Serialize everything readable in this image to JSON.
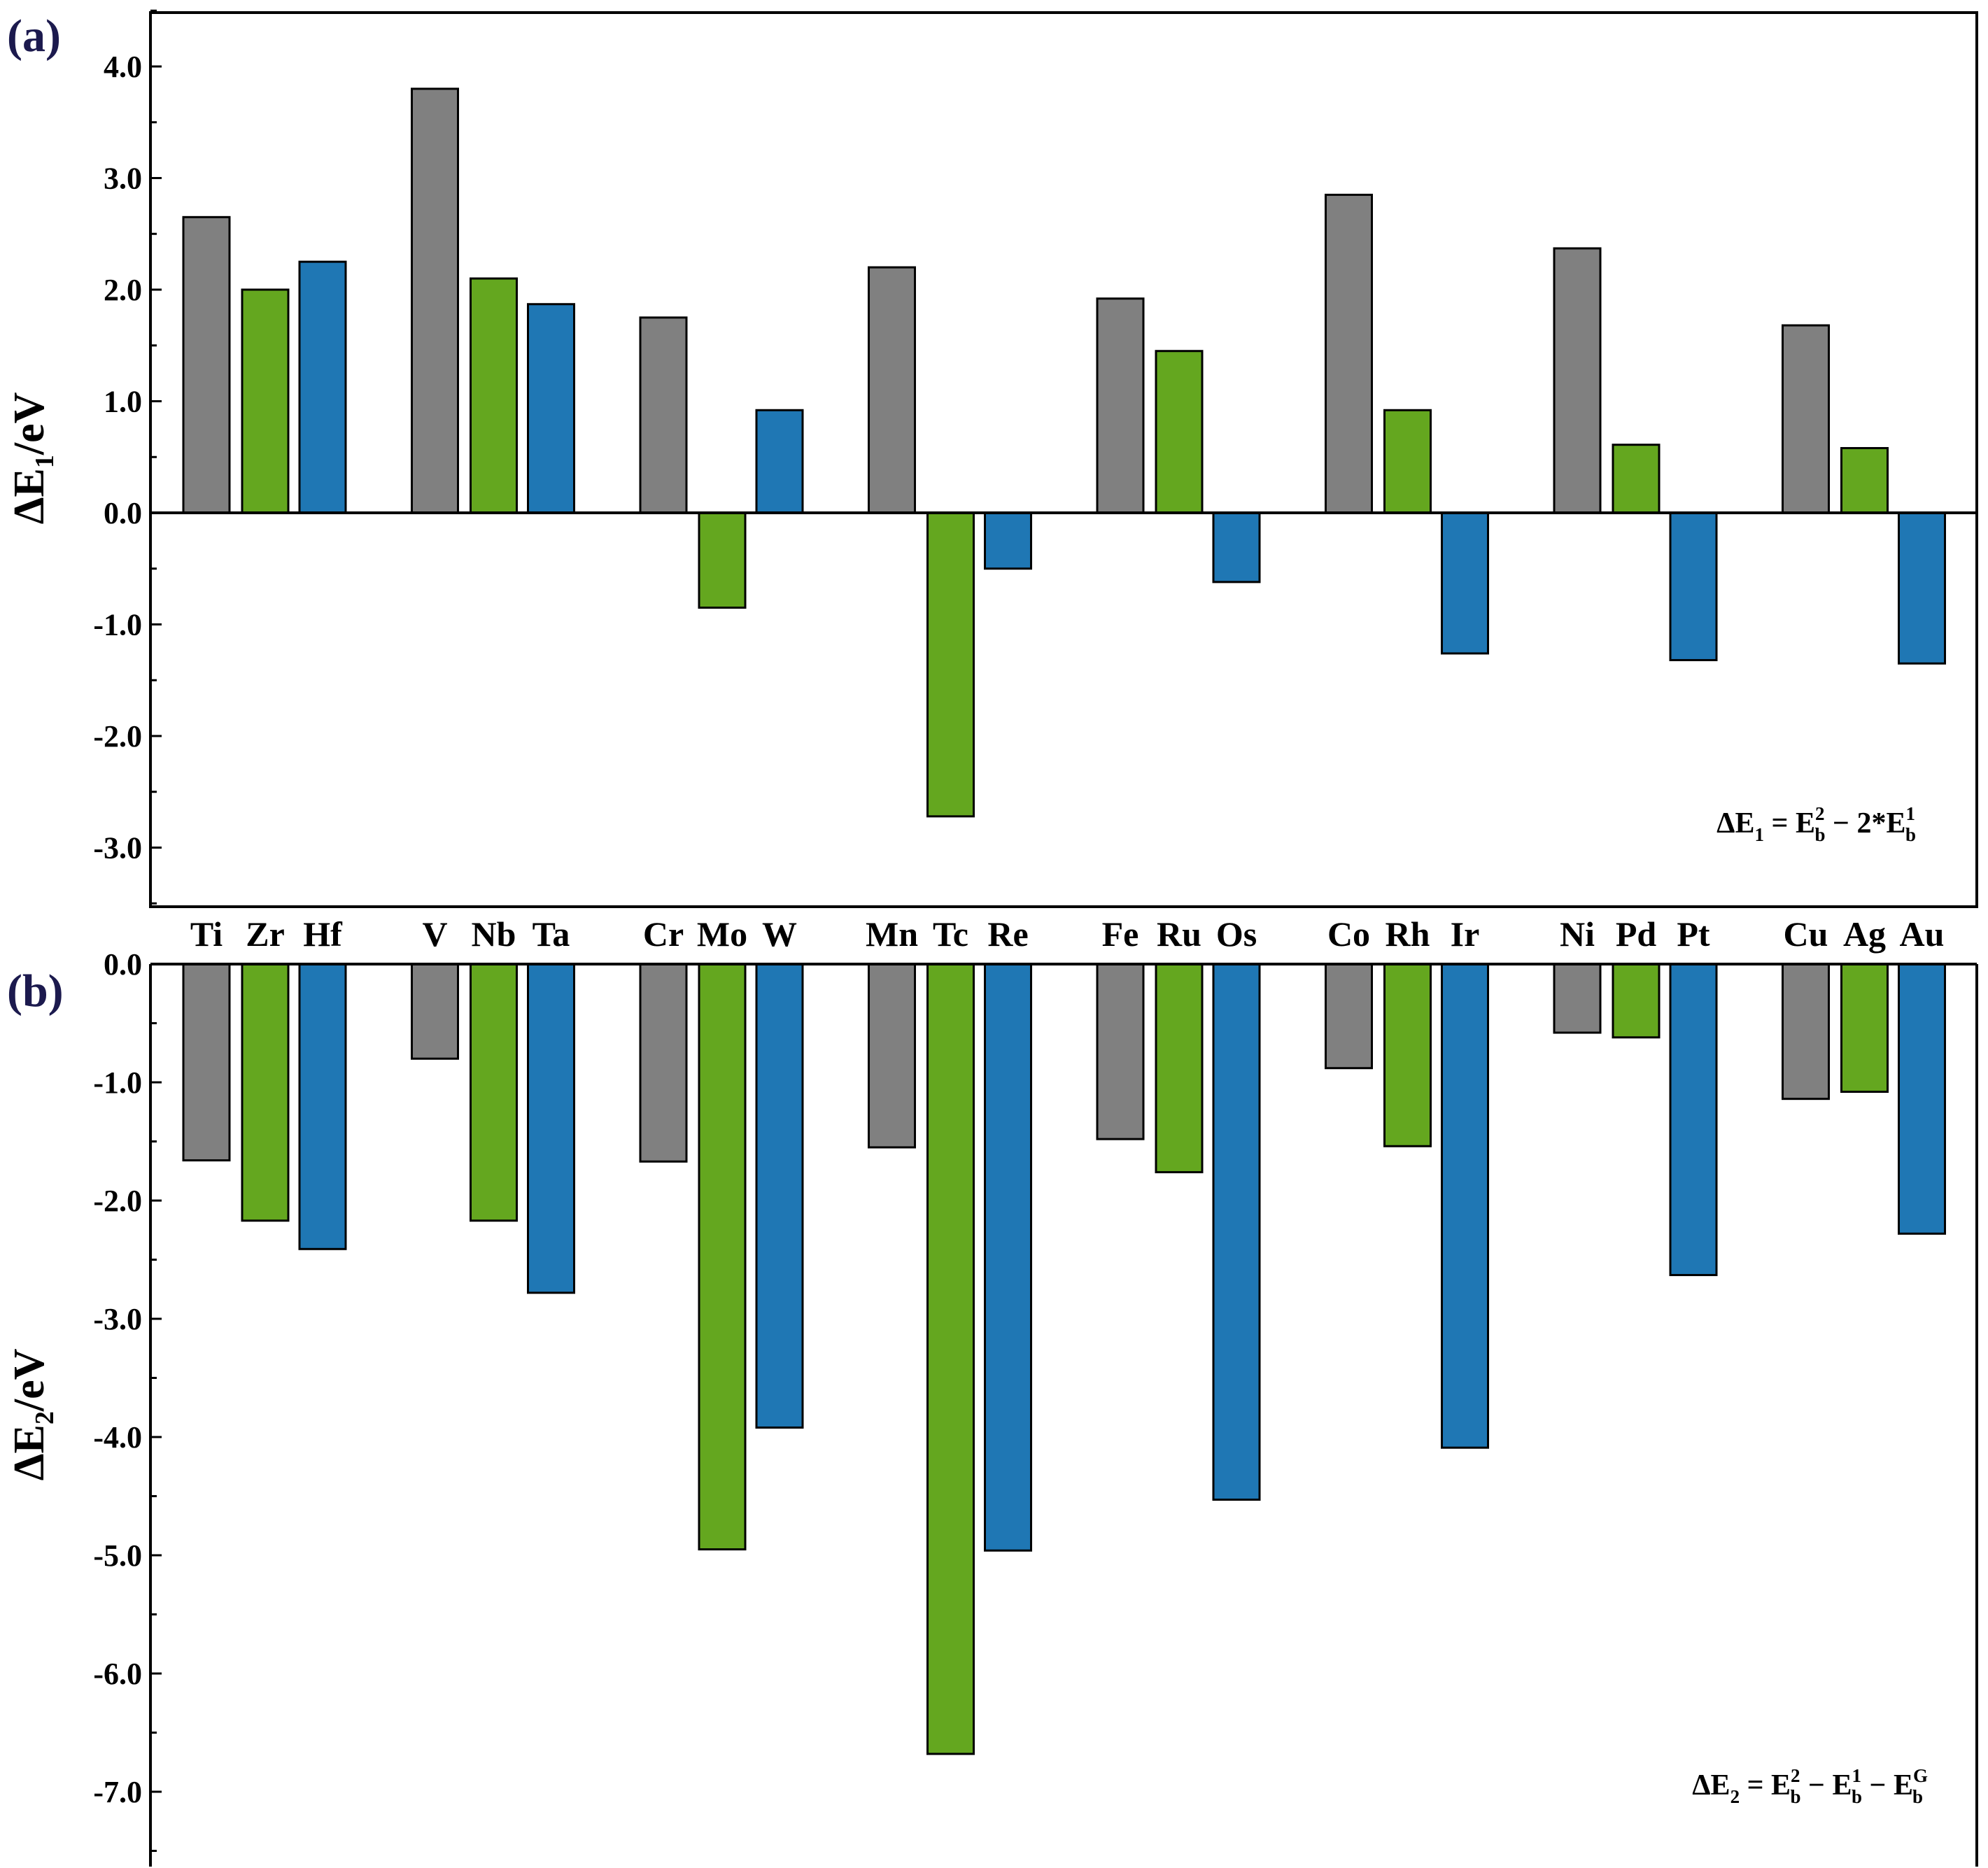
{
  "chart_data": [
    {
      "type": "bar",
      "panel_label": "(a)",
      "ylabel": "ΔE1/eV",
      "ylabel_main": "ΔE",
      "ylabel_sub": "1",
      "ylabel_rest": "/eV",
      "ylim": [
        -3.5,
        4.5
      ],
      "yticks": [
        4.0,
        3.0,
        2.0,
        1.0,
        0.0,
        -1.0,
        -2.0,
        -3.0
      ],
      "ytick_labels": [
        "4.0",
        "3.0",
        "2.0",
        "1.0",
        "0.0",
        "-1.0",
        "-2.0",
        "-3.0"
      ],
      "groups": [
        {
          "metals": [
            "Ti",
            "Zr",
            "Hf"
          ],
          "values": [
            2.65,
            2.0,
            2.25
          ]
        },
        {
          "metals": [
            "V",
            "Nb",
            "Ta"
          ],
          "values": [
            3.8,
            2.1,
            1.87
          ]
        },
        {
          "metals": [
            "Cr",
            "Mo",
            "W"
          ],
          "values": [
            1.75,
            -0.85,
            0.92
          ]
        },
        {
          "metals": [
            "Mn",
            "Tc",
            "Re"
          ],
          "values": [
            2.2,
            -2.72,
            -0.5
          ]
        },
        {
          "metals": [
            "Fe",
            "Ru",
            "Os"
          ],
          "values": [
            1.92,
            1.45,
            -0.62
          ]
        },
        {
          "metals": [
            "Co",
            "Rh",
            "Ir"
          ],
          "values": [
            2.85,
            0.92,
            -1.26
          ]
        },
        {
          "metals": [
            "Ni",
            "Pd",
            "Pt"
          ],
          "values": [
            2.37,
            0.61,
            -1.32
          ]
        },
        {
          "metals": [
            "Cu",
            "Ag",
            "Au"
          ],
          "values": [
            1.68,
            0.58,
            -1.35
          ]
        }
      ],
      "series_colors": [
        "#808080",
        "#64a71f",
        "#1f77b4"
      ],
      "annotation": {
        "lhs": "ΔE",
        "lhs_sub": "1",
        "eq": " = ",
        "t1": "E",
        "t1_sub": "b",
        "t1_sup": "2",
        "op": " − 2*",
        "t2": "E",
        "t2_sub": "b",
        "t2_sup": "1"
      }
    },
    {
      "type": "bar",
      "panel_label": "(b)",
      "ylabel": "ΔE2/eV",
      "ylabel_main": "ΔE",
      "ylabel_sub": "2",
      "ylabel_rest": "/eV",
      "ylim": [
        -7.5,
        0.0
      ],
      "yticks": [
        0.0,
        -1.0,
        -2.0,
        -3.0,
        -4.0,
        -5.0,
        -6.0,
        -7.0
      ],
      "ytick_labels": [
        "0.0",
        "-1.0",
        "-2.0",
        "-3.0",
        "-4.0",
        "-5.0",
        "-6.0",
        "-7.0"
      ],
      "groups": [
        {
          "metals": [
            "Ti",
            "Zr",
            "Hf"
          ],
          "values": [
            -1.66,
            -2.17,
            -2.41
          ]
        },
        {
          "metals": [
            "V",
            "Nb",
            "Ta"
          ],
          "values": [
            -0.8,
            -2.17,
            -2.78
          ]
        },
        {
          "metals": [
            "Cr",
            "Mo",
            "W"
          ],
          "values": [
            -1.67,
            -4.95,
            -3.92
          ]
        },
        {
          "metals": [
            "Mn",
            "Tc",
            "Re"
          ],
          "values": [
            -1.55,
            -6.68,
            -4.96
          ]
        },
        {
          "metals": [
            "Fe",
            "Ru",
            "Os"
          ],
          "values": [
            -1.48,
            -1.76,
            -4.53
          ]
        },
        {
          "metals": [
            "Co",
            "Rh",
            "Ir"
          ],
          "values": [
            -0.88,
            -1.54,
            -4.09
          ]
        },
        {
          "metals": [
            "Ni",
            "Pd",
            "Pt"
          ],
          "values": [
            -0.58,
            -0.62,
            -2.63
          ]
        },
        {
          "metals": [
            "Cu",
            "Ag",
            "Au"
          ],
          "values": [
            -1.14,
            -1.08,
            -2.28
          ]
        }
      ],
      "series_colors": [
        "#808080",
        "#64a71f",
        "#1f77b4"
      ],
      "annotation": {
        "lhs": "ΔE",
        "lhs_sub": "2",
        "eq": " = ",
        "t1": "E",
        "t1_sub": "b",
        "t1_sup": "2",
        "op1": " − ",
        "t2": "E",
        "t2_sub": "b",
        "t2_sup": "1",
        "op2": " − ",
        "t3": "E",
        "t3_sub": "b",
        "t3_sup": "G"
      }
    }
  ],
  "category_labels": [
    "Ti",
    "Zr",
    "Hf",
    "V",
    "Nb",
    "Ta",
    "Cr",
    "Mo",
    "W",
    "Mn",
    "Tc",
    "Re",
    "Fe",
    "Ru",
    "Os",
    "Co",
    "Rh",
    "Ir",
    "Ni",
    "Pd",
    "Pt",
    "Cu",
    "Ag",
    "Au"
  ]
}
